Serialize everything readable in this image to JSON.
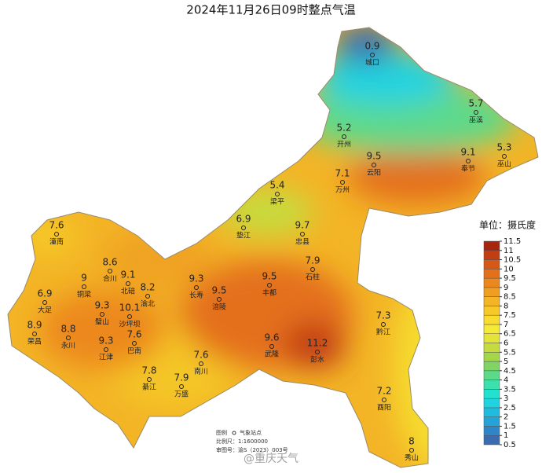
{
  "title": "2024年11月26日09时整点气温",
  "stations": [
    {
      "name": "城口",
      "value": 0.9
    },
    {
      "name": "巫溪",
      "value": 5.7
    },
    {
      "name": "巫山",
      "value": 5.3
    },
    {
      "name": "开州",
      "value": 5.2
    },
    {
      "name": "奉节",
      "value": 9.1
    },
    {
      "name": "云阳",
      "value": 9.5
    },
    {
      "name": "万州",
      "value": 7.1
    },
    {
      "name": "梁平",
      "value": 5.4
    },
    {
      "name": "垫江",
      "value": 6.9
    },
    {
      "name": "忠县",
      "value": 9.7
    },
    {
      "name": "石柱",
      "value": 7.9
    },
    {
      "name": "潼南",
      "value": 7.6
    },
    {
      "name": "合川",
      "value": 8.6
    },
    {
      "name": "北碚",
      "value": 9.1
    },
    {
      "name": "铜梁",
      "value": 9
    },
    {
      "name": "渝北",
      "value": 8.2
    },
    {
      "name": "大足",
      "value": 6.9
    },
    {
      "name": "丰都",
      "value": 9.5
    },
    {
      "name": "长寿",
      "value": 9.3
    },
    {
      "name": "涪陵",
      "value": 9.5
    },
    {
      "name": "璧山",
      "value": 9.3
    },
    {
      "name": "沙坪坝",
      "value": 10.1
    },
    {
      "name": "荣昌",
      "value": 8.9
    },
    {
      "name": "永川",
      "value": 8.8
    },
    {
      "name": "江津",
      "value": 9.3
    },
    {
      "name": "巴南",
      "value": 7.6
    },
    {
      "name": "黔江",
      "value": 7.3
    },
    {
      "name": "武隆",
      "value": 9.6
    },
    {
      "name": "彭水",
      "value": 11.2
    },
    {
      "name": "南川",
      "value": 7.6
    },
    {
      "name": "綦江",
      "value": 7.8
    },
    {
      "name": "万盛",
      "value": 7.9
    },
    {
      "name": "酉阳",
      "value": 7.2
    },
    {
      "name": "秀山",
      "value": 8
    }
  ],
  "legend": {
    "title": "单位：摄氏度",
    "ticks": [
      0.5,
      1,
      1.5,
      2,
      2.5,
      3,
      3.5,
      4,
      4.5,
      5,
      5.5,
      6,
      6.5,
      7,
      7.5,
      8,
      8.5,
      9,
      9.5,
      10,
      10.5,
      11,
      11.5
    ],
    "colors": [
      "#3a6db0",
      "#2f86c6",
      "#23a3d8",
      "#1ebde0",
      "#20d3e0",
      "#22e2cf",
      "#3be0ac",
      "#5dd98a",
      "#80d466",
      "#a4d64a",
      "#c6dc3e",
      "#e3e33a",
      "#f5ea38",
      "#f8dc2e",
      "#f6c928",
      "#f3b426",
      "#f09e22",
      "#ec871e",
      "#e4701a",
      "#d65816",
      "#c23e12",
      "#a5250e"
    ]
  },
  "notes": {
    "legend": "图例",
    "station": "气象站点",
    "scale": "比例尺：1:1600000",
    "approval": "审图号：渝S（2023）003号"
  },
  "watermark": "@重庆天气"
}
